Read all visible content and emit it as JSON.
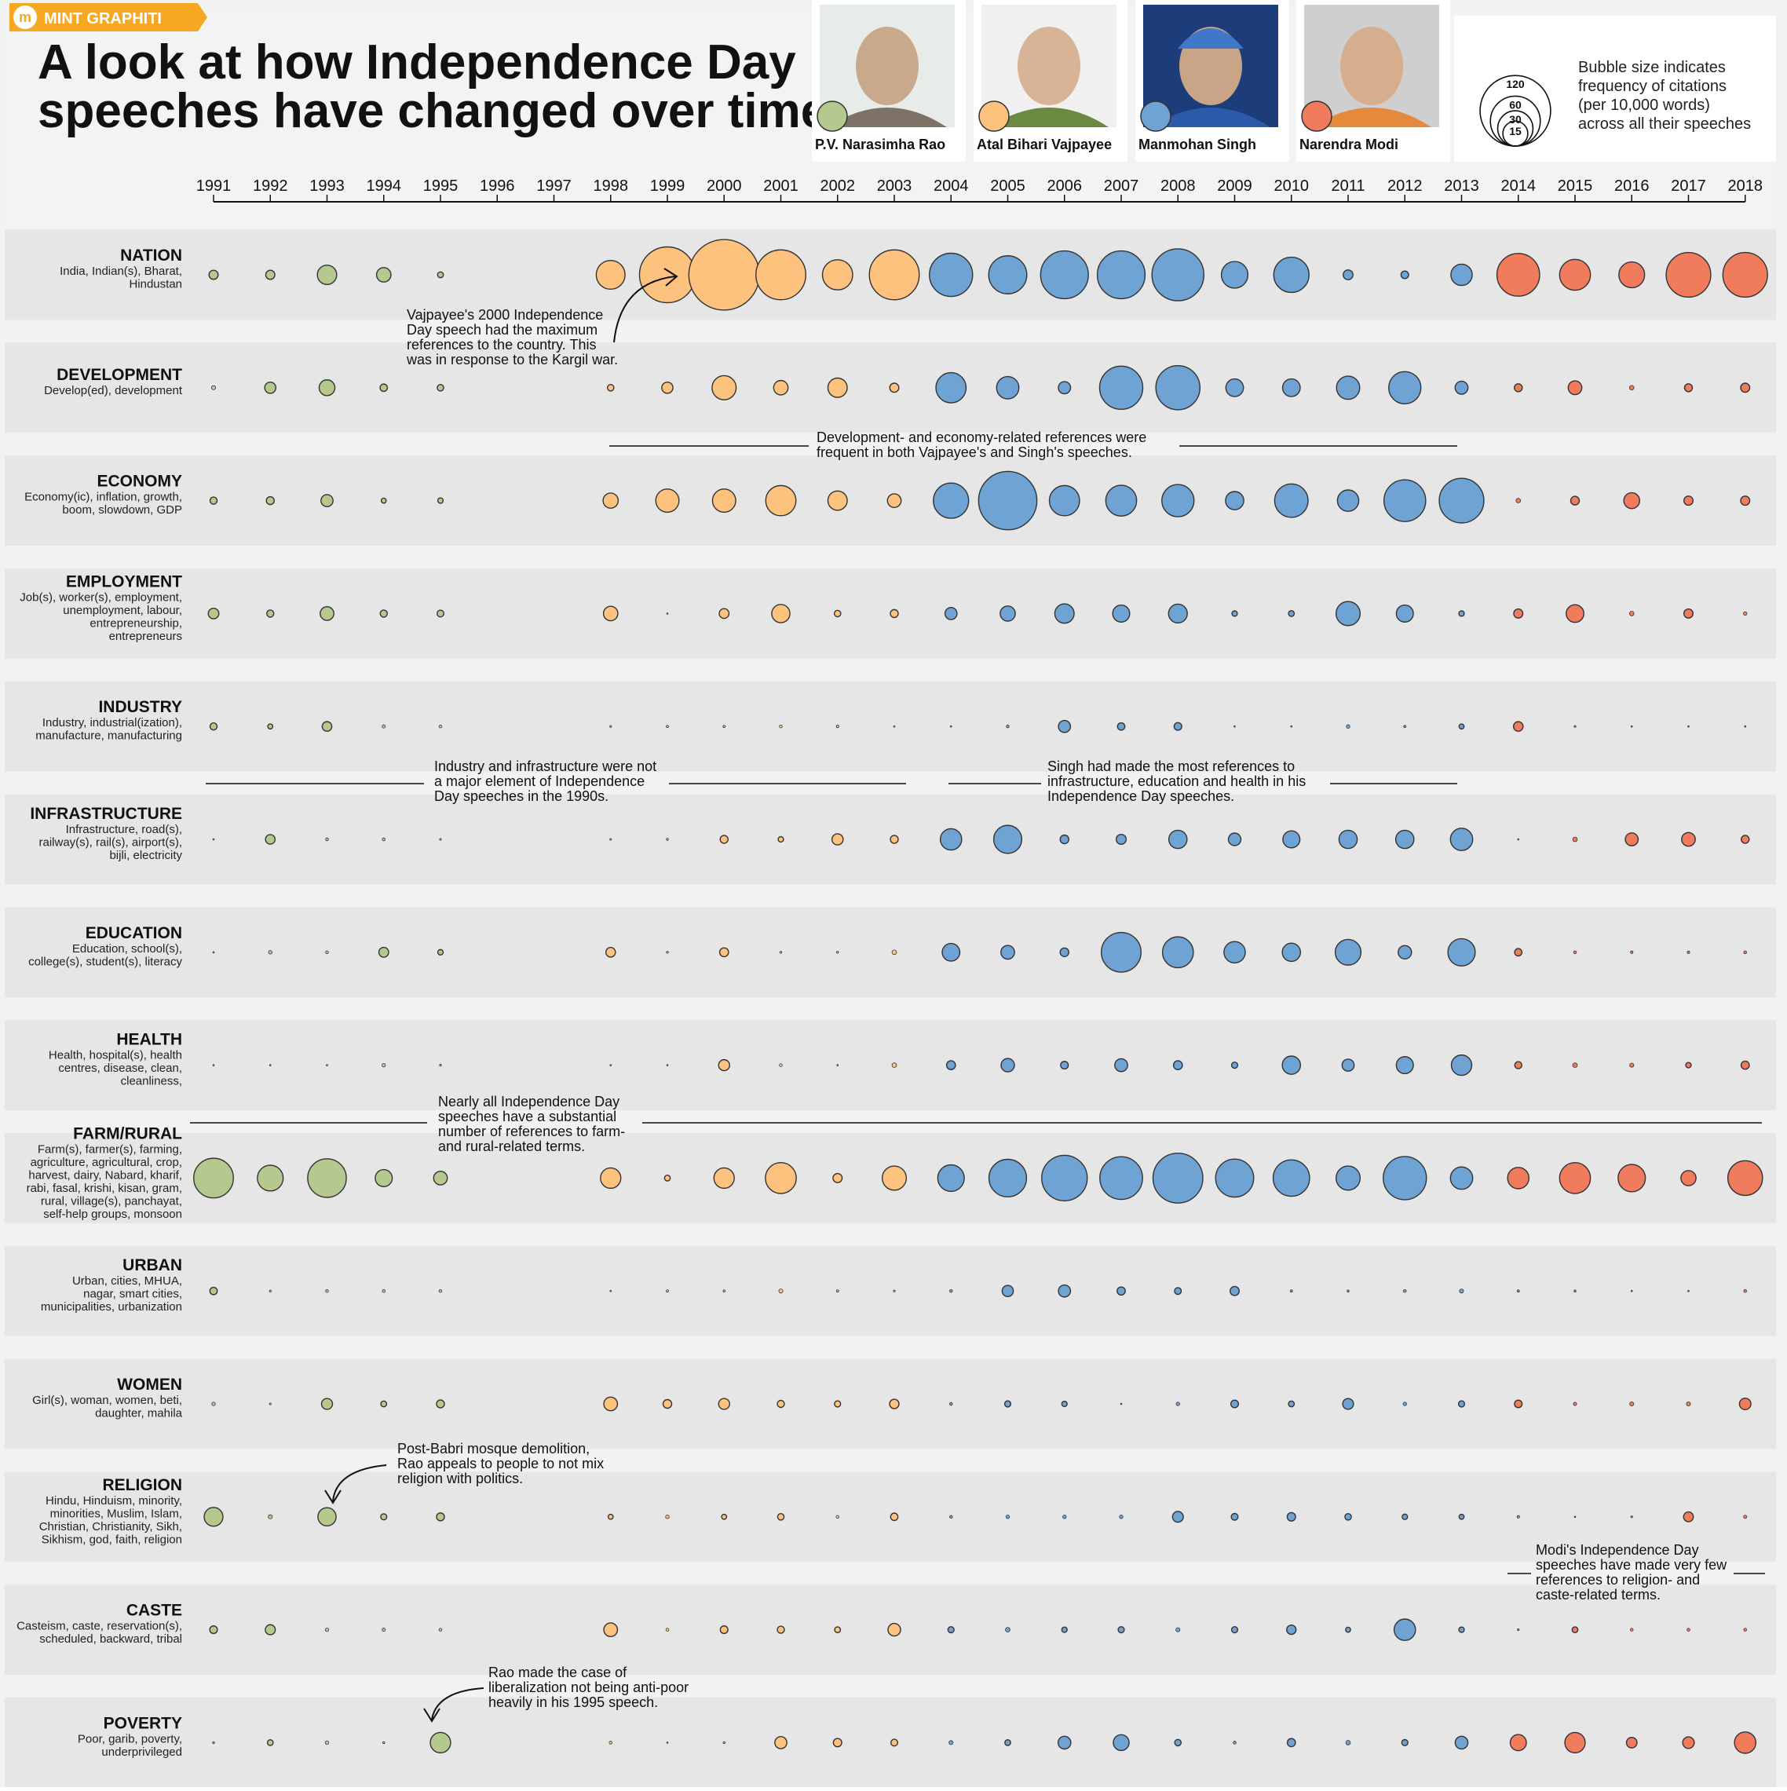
{
  "badge": {
    "logo": "m",
    "text": "MINT GRAPHITI"
  },
  "title_lines": [
    "A look at how Independence Day",
    "speeches have changed over time"
  ],
  "colors": {
    "rao": "#b5c98e",
    "vajpayee": "#fdc27e",
    "singh": "#6fa3d3",
    "modi": "#f07b5d",
    "band": "#e6e6e6",
    "gap": "#f1f3f2"
  },
  "prime_ministers": [
    {
      "key": "rao",
      "name": "P.V. Narasimha Rao",
      "photo_icon": "portrait-icon"
    },
    {
      "key": "vajpayee",
      "name": "Atal Bihari Vajpayee",
      "photo_icon": "portrait-icon"
    },
    {
      "key": "singh",
      "name": "Manmohan Singh",
      "photo_icon": "portrait-icon"
    },
    {
      "key": "modi",
      "name": "Narendra Modi",
      "photo_icon": "portrait-icon"
    }
  ],
  "legend": {
    "sizes": [
      120,
      60,
      30,
      15
    ],
    "lines": [
      "Bubble size indicates",
      "frequency of citations",
      "(per 10,000 words)",
      "across all their speeches"
    ]
  },
  "annotations": [
    {
      "id": "kargil",
      "lines": [
        "Vajpayee's 2000 Independence",
        "Day speech had the maximum",
        "references to the country. This",
        "was in response to the Kargil war."
      ]
    },
    {
      "id": "dev-econ",
      "lines": [
        "Development- and economy-related references were",
        "frequent in both Vajpayee's and Singh's speeches."
      ]
    },
    {
      "id": "industry-1990s",
      "lines": [
        "Industry and infrastructure were not",
        "a major element of Independence",
        "Day speeches in the 1990s."
      ]
    },
    {
      "id": "singh-infra",
      "lines": [
        "Singh had made the most references to",
        "infrastructure, education and health in his",
        "Independence Day speeches."
      ]
    },
    {
      "id": "farm",
      "lines": [
        "Nearly all Independence Day",
        "speeches have a substantial",
        "number of references to farm-",
        "and rural-related terms."
      ]
    },
    {
      "id": "babri",
      "lines": [
        "Post-Babri mosque demolition,",
        "Rao appeals to people to not mix",
        "religion with politics."
      ]
    },
    {
      "id": "modi-religion",
      "lines": [
        "Modi's Independence Day",
        "speeches have made very few",
        "references to religion- and",
        "caste-related terms."
      ]
    },
    {
      "id": "liberalization",
      "lines": [
        "Rao made the case of",
        "liberalization not being anti-poor",
        "heavily in his 1995 speech."
      ]
    }
  ],
  "chart_data": {
    "type": "bubble-matrix",
    "size_measure": "frequency of citations (per 10,000 words)",
    "x": [
      1991,
      1992,
      1993,
      1994,
      1995,
      1996,
      1997,
      1998,
      1999,
      2000,
      2001,
      2002,
      2003,
      2004,
      2005,
      2006,
      2007,
      2008,
      2009,
      2010,
      2011,
      2012,
      2013,
      2014,
      2015,
      2016,
      2017,
      2018
    ],
    "pm_by_year": [
      "rao",
      "rao",
      "rao",
      "rao",
      "rao",
      null,
      null,
      "vajpayee",
      "vajpayee",
      "vajpayee",
      "vajpayee",
      "vajpayee",
      "vajpayee",
      "singh",
      "singh",
      "singh",
      "singh",
      "singh",
      "singh",
      "singh",
      "singh",
      "singh",
      "singh",
      "modi",
      "modi",
      "modi",
      "modi",
      "modi"
    ],
    "categories": [
      {
        "name": "NATION",
        "terms": [
          "India, Indian(s), Bharat,",
          "Hindustan"
        ],
        "values": [
          2,
          2,
          9,
          5,
          0.8,
          null,
          null,
          20,
          75,
          120,
          60,
          22,
          60,
          45,
          35,
          55,
          55,
          65,
          17,
          30,
          2.3,
          1.4,
          11,
          44,
          23,
          16,
          48,
          48
        ]
      },
      {
        "name": "DEVELOPMENT",
        "terms": [
          "Develop(ed), development"
        ],
        "values": [
          0.4,
          3,
          6,
          1.3,
          1,
          null,
          null,
          1,
          3,
          14,
          5,
          9,
          2,
          22,
          12,
          3.6,
          45,
          47,
          7.5,
          7.5,
          13,
          25,
          4,
          1.5,
          4.5,
          0.5,
          1.5,
          2
        ]
      },
      {
        "name": "ECONOMY",
        "terms": [
          "Economy(ic), inflation, growth,",
          "boom, slowdown, GDP"
        ],
        "values": [
          1.2,
          1.5,
          3.5,
          0.6,
          0.7,
          null,
          null,
          5.5,
          13,
          13,
          22,
          9,
          4.5,
          30,
          82,
          22,
          23,
          25,
          8,
          27,
          11,
          42,
          48,
          0.5,
          1.8,
          6,
          2,
          2
        ]
      },
      {
        "name": "EMPLOYMENT",
        "terms": [
          "Job(s), worker(s), employment,",
          "unemployment, labour,",
          "entrepreneurship,",
          "entrepreneurs"
        ],
        "values": [
          2.7,
          1.2,
          4.5,
          1.2,
          1.1,
          null,
          null,
          5,
          0.02,
          2.3,
          8,
          1,
          1.5,
          3.5,
          5.5,
          9,
          7,
          8.5,
          0.7,
          0.8,
          14,
          7,
          0.7,
          2,
          7.5,
          0.5,
          2,
          0.3
        ]
      },
      {
        "name": "INDUSTRY",
        "terms": [
          "Industry, industrial(ization),",
          "manufacture, manufacturing"
        ],
        "values": [
          1.2,
          0.6,
          2.2,
          0.25,
          0.2,
          null,
          null,
          0.08,
          0.12,
          0.12,
          0.2,
          0.16,
          0.02,
          0.02,
          0.18,
          3.5,
          1.3,
          1.4,
          0.02,
          0.02,
          0.3,
          0.12,
          0.6,
          2.2,
          0.08,
          0.02,
          0.02,
          0.04
        ]
      },
      {
        "name": "INFRASTRUCTURE",
        "terms": [
          "Infrastructure, road(s),",
          "railway(s), rail(s), airport(s),",
          "bijli, electricity"
        ],
        "values": [
          0.04,
          2.2,
          0.2,
          0.2,
          0.08,
          null,
          null,
          0.08,
          0.1,
          1.5,
          0.7,
          3,
          1.5,
          11,
          19,
          1.8,
          2.4,
          8,
          3.8,
          7,
          8,
          8,
          12,
          0.04,
          0.5,
          4,
          4.5,
          1.5
        ]
      },
      {
        "name": "EDUCATION",
        "terms": [
          "Education, school(s),",
          "college(s), student(s), literacy"
        ],
        "values": [
          0.02,
          0.3,
          0.2,
          2.3,
          0.7,
          null,
          null,
          2.2,
          0.1,
          1.9,
          0.1,
          0.1,
          0.5,
          7.5,
          4.5,
          1.8,
          38,
          23,
          11,
          8,
          16,
          4.3,
          18,
          1.3,
          0.2,
          0.15,
          0.15,
          0.2
        ]
      },
      {
        "name": "HEALTH",
        "terms": [
          "Health, hospital(s), health",
          "centres, disease, clean,",
          "cleanliness,"
        ],
        "values": [
          0.02,
          0.02,
          0.04,
          0.3,
          0.08,
          null,
          null,
          0.02,
          0.02,
          2.9,
          0.2,
          0.02,
          0.5,
          1.9,
          4.3,
          1.4,
          4,
          1.9,
          0.9,
          8,
          3.5,
          7,
          10,
          1.2,
          0.5,
          0.4,
          0.7,
          1.6
        ]
      },
      {
        "name": "FARM/RURAL",
        "terms": [
          "Farm(s), farmer(s), farming,",
          "agriculture, agricultural, crop,",
          "harvest, dairy, Nabard, kharif,",
          "rabi, fasal, krishi, kisan, gram,",
          "rural, village(s), panchayat,",
          "self-help groups, monsoon"
        ],
        "values": [
          38,
          16,
          36,
          7,
          4.5,
          null,
          null,
          10,
          0.8,
          10,
          23,
          2,
          14,
          17,
          34,
          50,
          44,
          60,
          35,
          32,
          14,
          45,
          12,
          11,
          23,
          18,
          5.5,
          29
        ]
      },
      {
        "name": "URBAN",
        "terms": [
          "Urban, cities, MHUA,",
          "nagar, smart cities,",
          "municipalities, urbanization"
        ],
        "values": [
          1.3,
          0.08,
          0.2,
          0.2,
          0.2,
          null,
          null,
          0.02,
          0.12,
          0.1,
          0.4,
          0.12,
          0.08,
          0.2,
          3,
          3.5,
          1.6,
          1.1,
          2,
          0.12,
          0.1,
          0.2,
          0.4,
          0.12,
          0.1,
          0.02,
          0.02,
          0.2
        ]
      },
      {
        "name": "WOMEN",
        "terms": [
          "Girl(s), woman, women, beti,",
          "daughter, mahila"
        ],
        "values": [
          0.3,
          0.08,
          2.9,
          0.8,
          1.5,
          null,
          null,
          4.5,
          1.8,
          2.9,
          1.2,
          0.9,
          2.1,
          0.2,
          0.9,
          0.7,
          0.04,
          0.3,
          1.4,
          0.8,
          2.8,
          0.3,
          0.9,
          1.4,
          0.25,
          0.4,
          0.4,
          3.2
        ]
      },
      {
        "name": "RELIGION",
        "terms": [
          "Hindu, Hinduism, minority,",
          "minorities, Muslim, Islam,",
          "Christian, Christianity, Sikh,",
          "Sikhism, god, faith, religion"
        ],
        "values": [
          8.5,
          0.4,
          8,
          0.9,
          1.5,
          null,
          null,
          0.6,
          0.3,
          0.6,
          1,
          0.2,
          1.3,
          0.2,
          0.3,
          0.3,
          0.3,
          2.8,
          1.1,
          1.7,
          1,
          0.7,
          0.6,
          0.15,
          0.04,
          0.08,
          2.3,
          0.25
        ]
      },
      {
        "name": "CASTE",
        "terms": [
          "Casteism, caste, reservation(s),",
          "scheduled, backward, tribal"
        ],
        "values": [
          1.4,
          2.4,
          0.3,
          0.25,
          0.2,
          null,
          null,
          4.5,
          0.2,
          1.4,
          1.2,
          0.8,
          3.8,
          0.9,
          0.5,
          0.7,
          0.9,
          0.4,
          0.9,
          2.1,
          0.6,
          11,
          0.7,
          0.08,
          0.8,
          0.2,
          0.2,
          0.2
        ]
      },
      {
        "name": "POVERTY",
        "terms": [
          "Poor, garib, poverty,",
          "underprivileged"
        ],
        "values": [
          0.1,
          0.8,
          0.3,
          0.1,
          10,
          null,
          null,
          0.2,
          0.02,
          0.1,
          3.5,
          1.7,
          1.1,
          0.4,
          0.8,
          3.9,
          6,
          1,
          0.2,
          1.6,
          0.5,
          0.9,
          3.9,
          6.3,
          10,
          2.7,
          3.2,
          11
        ]
      }
    ]
  }
}
